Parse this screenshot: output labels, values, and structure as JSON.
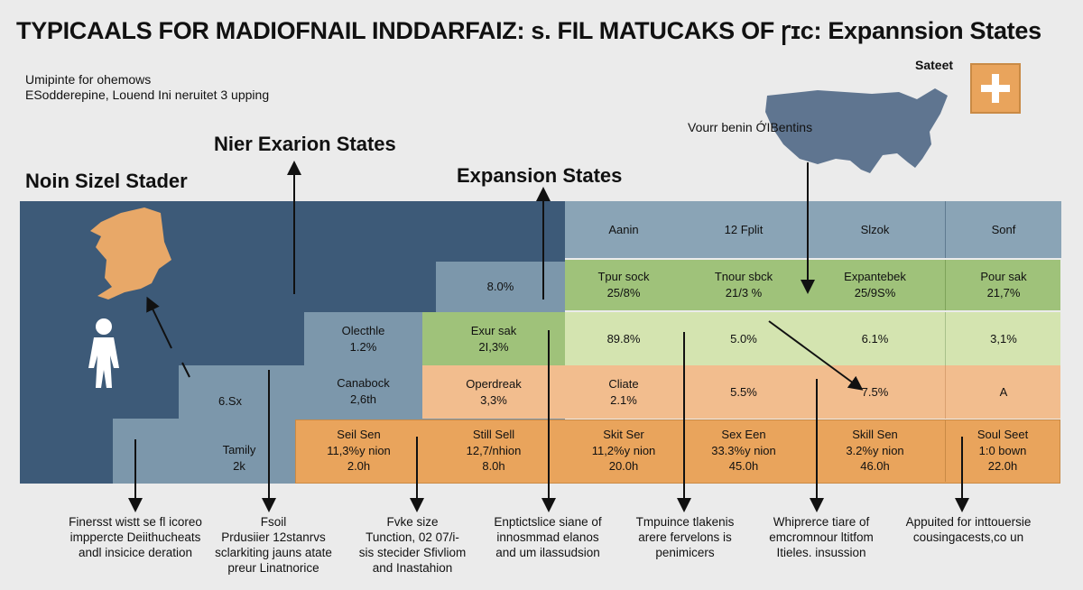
{
  "title": "TYPICAALS FOR MADIOFNAIL INDDARFAIZ: s. FIL MATUCAKS OF ꞅɪc: Expannsion States",
  "subtitle_lines": [
    "Umipinte for ohemows",
    "ESodderepine, Louend Ini neruitet 3 upping"
  ],
  "map_label": "Sateet",
  "map_caption": "Vourr benin ỚIBentins",
  "headings": {
    "nier": "Nier Exarion States",
    "noin": "Noin Sizel Stader",
    "expansion": "Expansion States"
  },
  "colors": {
    "dark_blue": "#3d5a78",
    "slate": "#7c97ab",
    "header_blue": "#8aa4b6",
    "green": "#9fc27a",
    "light_green": "#d4e4b0",
    "peach": "#f2bd8e",
    "orange": "#e9a45c",
    "map_orange": "#e8a868",
    "map_gray": "#5f7590"
  },
  "left_cells": {
    "val1": "8.0%",
    "oleh_name": "Olecthle",
    "oleh_val": "1.2%",
    "cana_name": "Canabock",
    "cana_val": "2,6th",
    "six": "6.Sx",
    "tamily_name": "Tamily",
    "tamily_val": "2k"
  },
  "col_headers": [
    "Aanin",
    "12 Fplit",
    "Slzok",
    "Sonf"
  ],
  "grid": {
    "exur": [
      "Exur sak",
      "2I,3%"
    ],
    "operdreak": [
      "Operdreak",
      "3,3%"
    ],
    "sell_sen": [
      "Seil Sen",
      "11,3%y nion",
      "2.0h"
    ],
    "still_sell": [
      "Still Sell",
      "12,7/nhion",
      "8.0h"
    ],
    "r1": [
      [
        "Tpur sock",
        "25/8%"
      ],
      [
        "Tnour sbck",
        "21/3 %"
      ],
      [
        "Expantebek",
        "25/9S%"
      ],
      [
        "Pour sak",
        "21,7%"
      ]
    ],
    "r2": [
      "89.8%",
      "5.0%",
      "6.1%",
      "3,1%"
    ],
    "r3": [
      [
        "Cliate",
        "2.1%"
      ],
      [
        "5.5%"
      ],
      [
        "7.5%"
      ],
      [
        "A"
      ]
    ],
    "r4": [
      [
        "Skit Ser",
        "11,2%y nion",
        "20.0h"
      ],
      [
        "Sex Een",
        "33.3%y nion",
        "45.0h"
      ],
      [
        "Skill Sen",
        "3.2%y nion",
        "46.0h"
      ],
      [
        "Soul Seet",
        "1:0 bown",
        "22.0h"
      ]
    ]
  },
  "captions": [
    [
      "Finersst wistt se fl icoreo",
      "imppercte Deiithucheats",
      "andl insicice deration"
    ],
    [
      "Fsoil",
      "Prdusiier 12stanrvs",
      "sclarkiting jauns atate",
      "preur Linatnorice"
    ],
    [
      "Fvke size",
      "Tunction, 02 07/i-",
      "sis stecider Sfivliom",
      "and Inastahion"
    ],
    [
      "Enptictslice siane of",
      "innosmmad elanos",
      "and um ilassudsion"
    ],
    [
      "Tmpuince tlakenis",
      "arere fervelons is",
      "penimicers"
    ],
    [
      "Whiprerce tiare of",
      "emcromnour ltitfom",
      "Itieles. insussion"
    ],
    [
      "Appuited for inttouersie",
      "cousingacests,co un"
    ]
  ]
}
